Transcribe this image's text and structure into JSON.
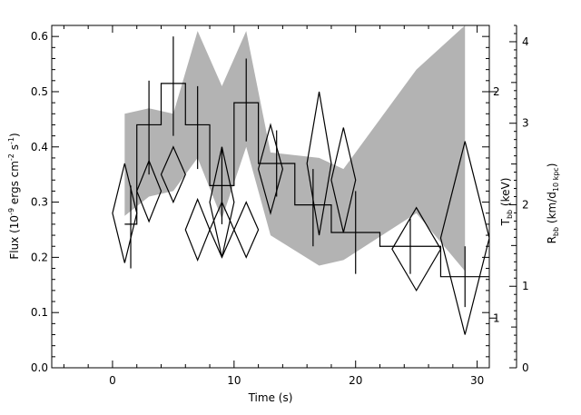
{
  "chart_data": {
    "type": "line",
    "xlabel": "Time (s)",
    "ylabel": {
      "main": "Flux (10",
      "sup1": "-9",
      "mid": " ergs cm",
      "sup2": "-2",
      "mid2": " s",
      "sup3": "-1",
      "end": ")"
    },
    "ylabel_right_inner": {
      "main": "T",
      "sub": "bb",
      "end": " (keV)"
    },
    "ylabel_right_outer": {
      "main": "R",
      "sub": "bb",
      "mid": " (km/d",
      "sub2": "10 kpc",
      "end": ")"
    },
    "xlim": [
      -5,
      31
    ],
    "ylim": [
      0,
      0.62
    ],
    "x_ticks": [
      0,
      10,
      20,
      30
    ],
    "x_tick_labels": [
      "0",
      "10",
      "20",
      "30"
    ],
    "y_ticks": [
      0.0,
      0.1,
      0.2,
      0.3,
      0.4,
      0.5,
      0.6
    ],
    "y_tick_labels": [
      "0.0",
      "0.1",
      "0.2",
      "0.3",
      "0.4",
      "0.5",
      "0.6"
    ],
    "t_axis": {
      "labels": [
        {
          "value": 1,
          "flux": 0.09,
          "text": "1"
        },
        {
          "value": 2,
          "flux": 0.5,
          "text": "2"
        }
      ]
    },
    "r_axis": {
      "range": [
        0,
        4.2
      ],
      "ticks": [
        0,
        1,
        2,
        3,
        4
      ],
      "tick_labels": [
        "0",
        "1",
        "2",
        "3",
        "4"
      ]
    },
    "series": [
      {
        "kind": "flux_step",
        "bins": [
          {
            "x0": 1,
            "x1": 2,
            "y": 0.26,
            "ylo": 0.18,
            "yhi": 0.33
          },
          {
            "x0": 2,
            "x1": 4,
            "y": 0.44,
            "ylo": 0.35,
            "yhi": 0.52
          },
          {
            "x0": 4,
            "x1": 6,
            "y": 0.515,
            "ylo": 0.42,
            "yhi": 0.6
          },
          {
            "x0": 6,
            "x1": 8,
            "y": 0.44,
            "ylo": 0.36,
            "yhi": 0.51
          },
          {
            "x0": 8,
            "x1": 10,
            "y": 0.33,
            "ylo": 0.26,
            "yhi": 0.4
          },
          {
            "x0": 10,
            "x1": 12,
            "y": 0.48,
            "ylo": 0.41,
            "yhi": 0.56
          },
          {
            "x0": 12,
            "x1": 15,
            "y": 0.37,
            "ylo": 0.31,
            "yhi": 0.43
          },
          {
            "x0": 15,
            "x1": 18,
            "y": 0.295,
            "ylo": 0.22,
            "yhi": 0.36
          },
          {
            "x0": 18,
            "x1": 22,
            "y": 0.245,
            "ylo": 0.17,
            "yhi": 0.32
          },
          {
            "x0": 22,
            "x1": 27,
            "y": 0.22,
            "ylo": 0.17,
            "yhi": 0.27
          },
          {
            "x0": 27,
            "x1": 31,
            "y": 0.165,
            "ylo": 0.11,
            "yhi": 0.22
          }
        ]
      },
      {
        "kind": "temperature_diamonds",
        "points": [
          {
            "x": 1,
            "y": 0.28,
            "dx": 1.0,
            "dy": 0.09
          },
          {
            "x": 3,
            "y": 0.32,
            "dx": 1.0,
            "dy": 0.055
          },
          {
            "x": 5,
            "y": 0.35,
            "dx": 1.0,
            "dy": 0.05
          },
          {
            "x": 7,
            "y": 0.25,
            "dx": 1.0,
            "dy": 0.055
          },
          {
            "x": 9,
            "y": 0.3,
            "dx": 1.0,
            "dy": 0.1
          },
          {
            "x": 9,
            "y": 0.25,
            "dx": 1.0,
            "dy": 0.05
          },
          {
            "x": 11,
            "y": 0.25,
            "dx": 1.0,
            "dy": 0.05
          },
          {
            "x": 13,
            "y": 0.36,
            "dx": 1.0,
            "dy": 0.08
          },
          {
            "x": 17,
            "y": 0.37,
            "dx": 1.0,
            "dy": 0.13
          },
          {
            "x": 19,
            "y": 0.34,
            "dx": 1.0,
            "dy": 0.095
          },
          {
            "x": 25,
            "y": 0.215,
            "dx": 2.0,
            "dy": 0.075
          },
          {
            "x": 29,
            "y": 0.235,
            "dx": 2.0,
            "dy": 0.175
          }
        ]
      },
      {
        "kind": "radius_band",
        "upper": [
          {
            "x": 1,
            "y": 0.46
          },
          {
            "x": 3,
            "y": 0.47
          },
          {
            "x": 5,
            "y": 0.46
          },
          {
            "x": 7,
            "y": 0.61
          },
          {
            "x": 9,
            "y": 0.51
          },
          {
            "x": 11,
            "y": 0.61
          },
          {
            "x": 13,
            "y": 0.39
          },
          {
            "x": 17,
            "y": 0.38
          },
          {
            "x": 19,
            "y": 0.36
          },
          {
            "x": 25,
            "y": 0.54
          },
          {
            "x": 29,
            "y": 0.62
          }
        ],
        "lower": [
          {
            "x": 1,
            "y": 0.275
          },
          {
            "x": 3,
            "y": 0.31
          },
          {
            "x": 5,
            "y": 0.32
          },
          {
            "x": 7,
            "y": 0.38
          },
          {
            "x": 9,
            "y": 0.27
          },
          {
            "x": 11,
            "y": 0.4
          },
          {
            "x": 13,
            "y": 0.24
          },
          {
            "x": 17,
            "y": 0.185
          },
          {
            "x": 19,
            "y": 0.195
          },
          {
            "x": 25,
            "y": 0.28
          },
          {
            "x": 29,
            "y": 0.175
          }
        ]
      }
    ]
  }
}
